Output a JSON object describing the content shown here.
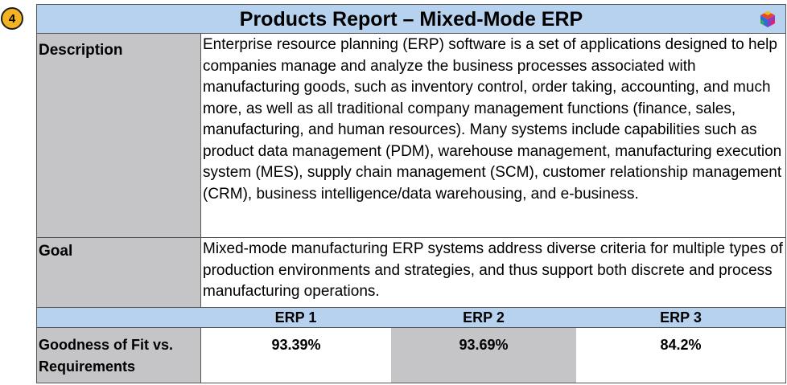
{
  "badge": {
    "number": "4",
    "color": "#f3b323"
  },
  "report": {
    "title": "Products Report – Mixed-Mode ERP",
    "title_icon": "colorful-cube-logo-icon",
    "header_color": "#b7d2ee",
    "label_color": "#c5c4c6"
  },
  "rows": {
    "description": {
      "label": "Description",
      "value": "Enterprise resource planning (ERP) software is a set of applications designed to help companies manage and analyze the business processes associated with manufacturing goods, such as inventory control, order taking, accounting, and much more, as well as all traditional company management functions (finance, sales, manufacturing, and human resources). Many systems include capabilities such as product data management (PDM), warehouse management, manufacturing execution system (MES), supply chain management (SCM), customer relationship management (CRM), business intelligence/data warehousing, and e-business."
    },
    "goal": {
      "label": "Goal",
      "value": "Mixed-mode manufacturing ERP systems address diverse criteria for multiple types of production environments and strategies, and thus support both discrete and process manufacturing operations."
    }
  },
  "comparison": {
    "columns": [
      "ERP 1",
      "ERP 2",
      "ERP 3"
    ],
    "fit_label": "Goodness of Fit vs. Requirements",
    "fit_values": [
      "93.39%",
      "93.69%",
      "84.2%"
    ]
  }
}
